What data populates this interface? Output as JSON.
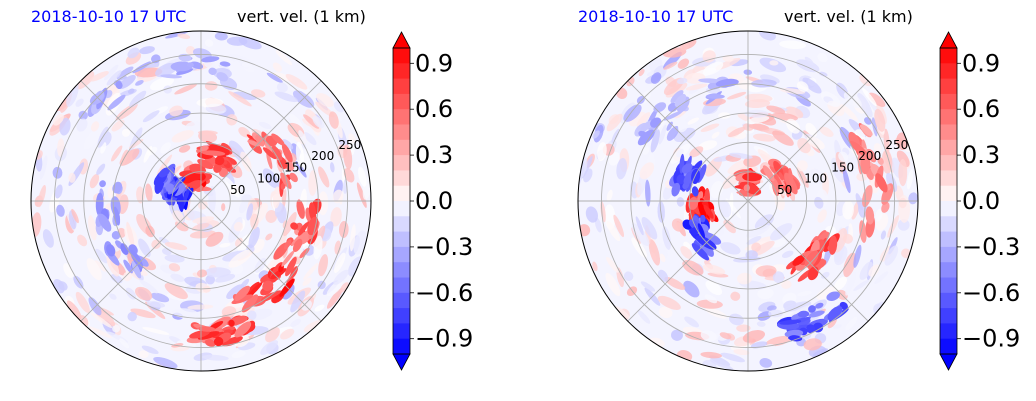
{
  "chart_data": [
    {
      "type": "heatmap",
      "projection": "polar",
      "title_left": "2018-10-10 17 UTC",
      "title_right": "vert. vel. (1 km)",
      "radial_ticks": [
        "50",
        "100",
        "150",
        "200",
        "250"
      ],
      "radial_values": [
        50,
        100,
        150,
        200,
        250
      ],
      "rmax": 290,
      "colorbar": {
        "ticks": [
          "0.9",
          "0.6",
          "0.3",
          "0.0",
          "−0.3",
          "−0.6",
          "−0.9"
        ],
        "tick_values": [
          0.9,
          0.6,
          0.3,
          0.0,
          -0.3,
          -0.6,
          -0.9
        ],
        "range": [
          -1.0,
          1.0
        ],
        "extend": "both",
        "colormap": "bwr"
      },
      "features": [
        {
          "theta_deg": 100,
          "r": 40,
          "value": 1.0,
          "spread": 35
        },
        {
          "theta_deg": 70,
          "r": 80,
          "value": 0.9,
          "spread": 40
        },
        {
          "theta_deg": 30,
          "r": 150,
          "value": 0.8,
          "spread": 40
        },
        {
          "theta_deg": -55,
          "r": 190,
          "value": 1.0,
          "spread": 30
        },
        {
          "theta_deg": -80,
          "r": 230,
          "value": 0.9,
          "spread": 25
        },
        {
          "theta_deg": -20,
          "r": 180,
          "value": 0.8,
          "spread": 35
        },
        {
          "theta_deg": 170,
          "r": 45,
          "value": -1.0,
          "spread": 20
        },
        {
          "theta_deg": 150,
          "r": 60,
          "value": -0.9,
          "spread": 22
        },
        {
          "theta_deg": 200,
          "r": 160,
          "value": -0.5,
          "spread": 60
        },
        {
          "theta_deg": 110,
          "r": 230,
          "value": -0.4,
          "spread": 60
        }
      ]
    },
    {
      "type": "heatmap",
      "projection": "polar",
      "title_left": "2018-10-10 17 UTC",
      "title_right": "vert. vel. (1 km)",
      "radial_ticks": [
        "50",
        "100",
        "150",
        "200",
        "250"
      ],
      "radial_values": [
        50,
        100,
        150,
        200,
        250
      ],
      "rmax": 290,
      "colorbar": {
        "ticks": [
          "0.9",
          "0.6",
          "0.3",
          "0.0",
          "−0.3",
          "−0.6",
          "−0.9"
        ],
        "tick_values": [
          0.9,
          0.6,
          0.3,
          0.0,
          -0.3,
          -0.6,
          -0.9
        ],
        "range": [
          -1.0,
          1.0
        ],
        "extend": "both",
        "colormap": "bwr"
      },
      "features": [
        {
          "theta_deg": 90,
          "r": 30,
          "value": 0.9,
          "spread": 30
        },
        {
          "theta_deg": 40,
          "r": 70,
          "value": 0.7,
          "spread": 45
        },
        {
          "theta_deg": 190,
          "r": 80,
          "value": 1.0,
          "spread": 30
        },
        {
          "theta_deg": 215,
          "r": 100,
          "value": -0.9,
          "spread": 28
        },
        {
          "theta_deg": 160,
          "r": 110,
          "value": -0.8,
          "spread": 25
        },
        {
          "theta_deg": -40,
          "r": 150,
          "value": 0.9,
          "spread": 30
        },
        {
          "theta_deg": -60,
          "r": 230,
          "value": -0.8,
          "spread": 25
        },
        {
          "theta_deg": 10,
          "r": 220,
          "value": 0.6,
          "spread": 50
        },
        {
          "theta_deg": 120,
          "r": 200,
          "value": -0.4,
          "spread": 60
        }
      ]
    }
  ]
}
